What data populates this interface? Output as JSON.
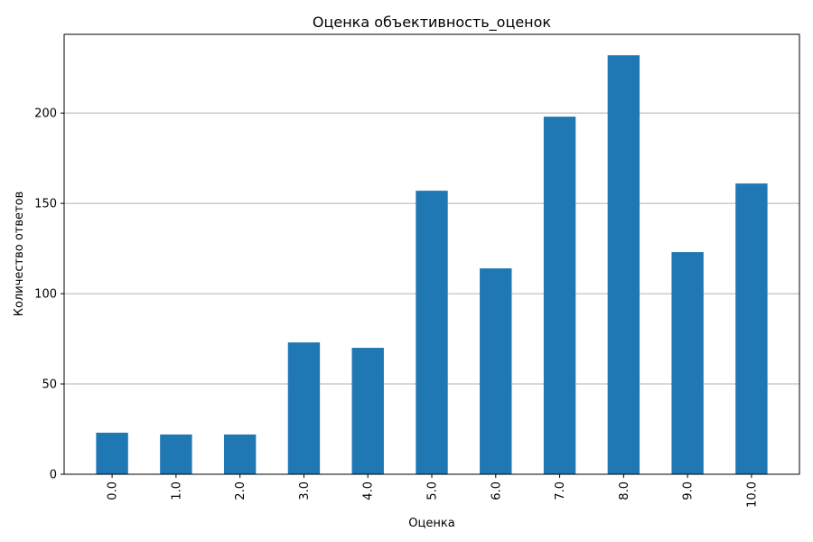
{
  "chart_data": {
    "type": "bar",
    "title": "Оценка объективность_оценок",
    "xlabel": "Оценка",
    "ylabel": "Количество ответов",
    "categories": [
      "0.0",
      "1.0",
      "2.0",
      "3.0",
      "4.0",
      "5.0",
      "6.0",
      "7.0",
      "8.0",
      "9.0",
      "10.0"
    ],
    "values": [
      23,
      22,
      22,
      73,
      70,
      157,
      114,
      198,
      232,
      123,
      161
    ],
    "ylim": [
      0,
      243.6
    ],
    "yticks": [
      0,
      50,
      100,
      150,
      200
    ],
    "grid": "y",
    "legend": "none",
    "bar_color": "#1f77b4",
    "x_tick_rotation": "vertical"
  }
}
